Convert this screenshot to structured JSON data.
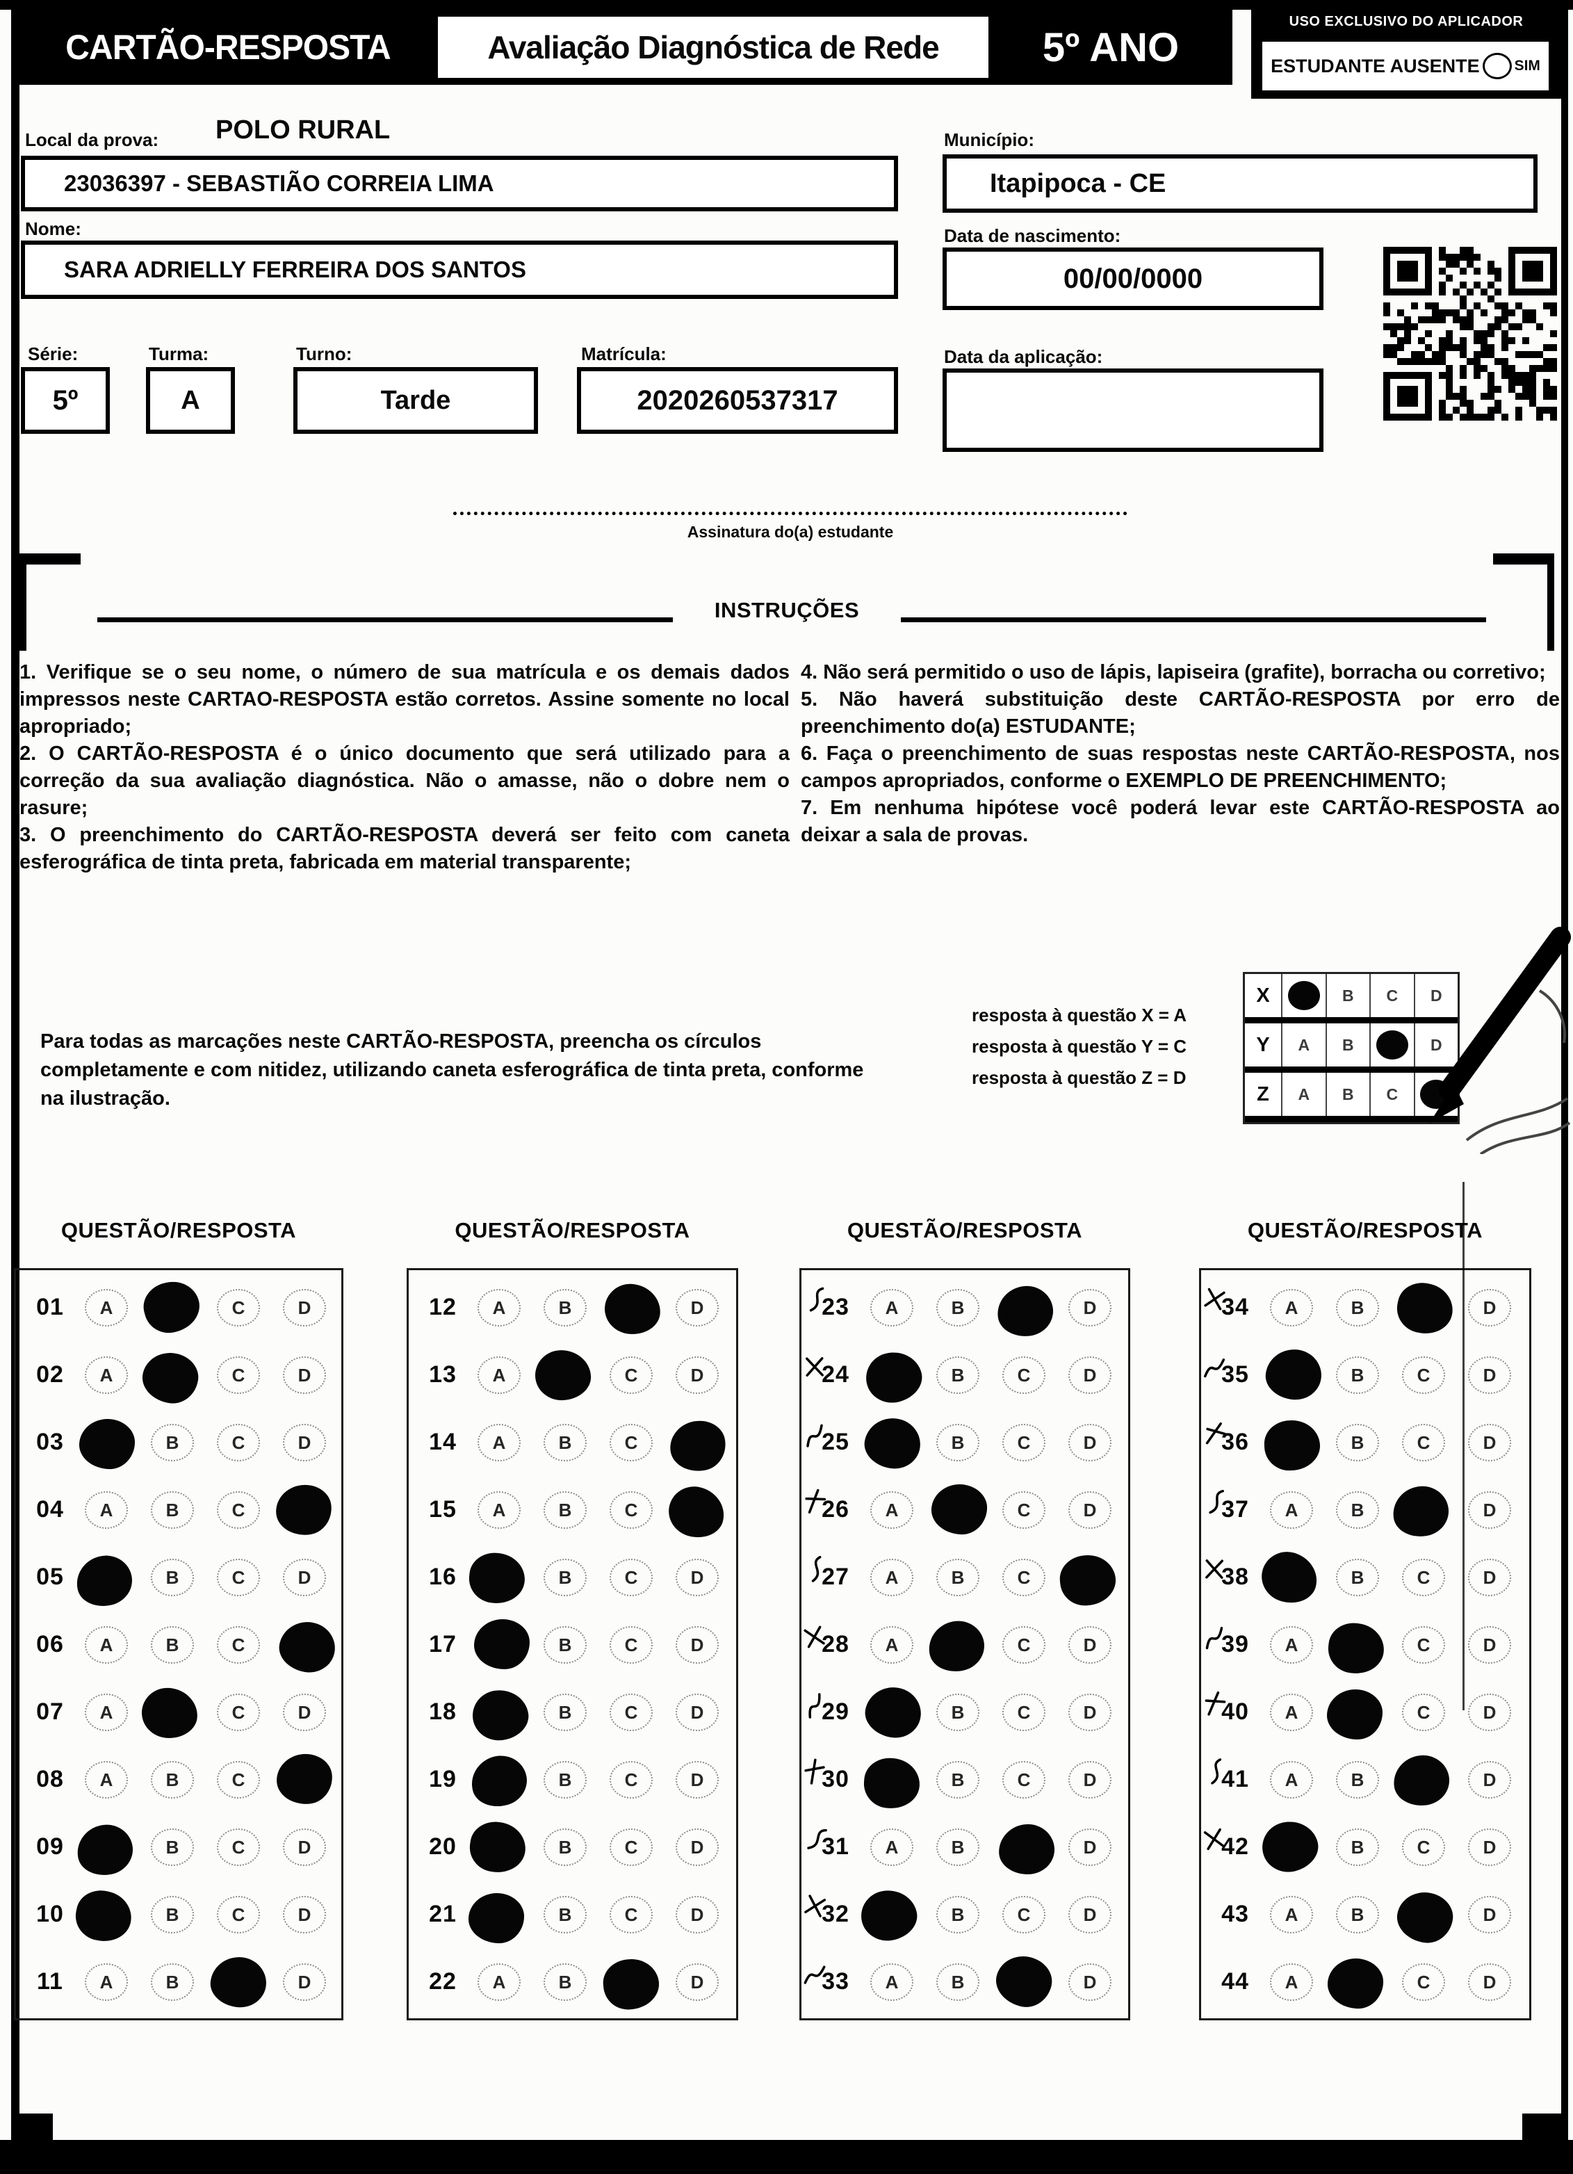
{
  "header": {
    "title": "CARTÃO-RESPOSTA",
    "subtitle": "Avaliação Diagnóstica de Rede",
    "grade": "5º ANO",
    "aplicador_label": "USO EXCLUSIVO DO APLICADOR",
    "absent_label": "ESTUDANTE AUSENTE",
    "absent_option": "SIM"
  },
  "fields": {
    "local_label": "Local da prova:",
    "local_value": "POLO RURAL",
    "school_value": "23036397 - SEBASTIÃO CORREIA LIMA",
    "municipio_label": "Município:",
    "municipio_value": "Itapipoca - CE",
    "nome_label": "Nome:",
    "nome_value": "SARA ADRIELLY FERREIRA DOS SANTOS",
    "nascimento_label": "Data de nascimento:",
    "nascimento_value": "00/00/0000",
    "serie_label": "Série:",
    "serie_value": "5º",
    "turma_label": "Turma:",
    "turma_value": "A",
    "turno_label": "Turno:",
    "turno_value": "Tarde",
    "matricula_label": "Matrícula:",
    "matricula_value": "2020260537317",
    "aplicacao_label": "Data da aplicação:",
    "aplicacao_value": ""
  },
  "signature_label": "Assinatura do(a) estudante",
  "instructions": {
    "title": "INSTRUÇÕES",
    "left": [
      "1. Verifique se o seu nome, o número de sua matrícula e os demais dados impressos neste CARTAO-RESPOSTA estão corretos. Assine somente no local apropriado;",
      "2. O CARTÃO-RESPOSTA é o único documento que será utilizado para a correção da sua avaliação diagnóstica. Não o amasse, não o dobre nem o rasure;",
      "3. O preenchimento do CARTÃO-RESPOSTA deverá ser feito com caneta esferográfica de tinta preta, fabricada em material transparente;"
    ],
    "right": [
      "4. Não será permitido o uso de lápis, lapiseira (grafite), borracha ou corretivo;",
      "5. Não haverá substituição deste CARTÃO-RESPOSTA por erro de preenchimento do(a) ESTUDANTE;",
      "6. Faça o preenchimento de suas respostas neste CARTÃO-RESPOSTA, nos campos apropriados, conforme o EXEMPLO DE PREENCHIMENTO;",
      "7. Em nenhuma hipótese você poderá levar este CARTÃO-RESPOSTA ao deixar a sala de provas."
    ]
  },
  "example": {
    "text": "Para todas as marcações neste CARTÃO-RESPOSTA, preencha os círculos completamente e com nitidez, utilizando caneta esferográfica de tinta preta, conforme na ilustração.",
    "legend": [
      "resposta à questão X = A",
      "resposta à questão Y = C",
      "resposta à questão Z = D"
    ],
    "options": [
      "A",
      "B",
      "C",
      "D"
    ],
    "rows": [
      {
        "label": "X",
        "marked": "A"
      },
      {
        "label": "Y",
        "marked": "C"
      },
      {
        "label": "Z",
        "marked": "D"
      }
    ]
  },
  "answer_section": {
    "column_header": "QUESTÃO/RESPOSTA",
    "options": [
      "A",
      "B",
      "C",
      "D"
    ],
    "columns": [
      {
        "questions": [
          {
            "n": "01",
            "marked": "B"
          },
          {
            "n": "02",
            "marked": "B"
          },
          {
            "n": "03",
            "marked": "A"
          },
          {
            "n": "04",
            "marked": "D"
          },
          {
            "n": "05",
            "marked": "A"
          },
          {
            "n": "06",
            "marked": "D"
          },
          {
            "n": "07",
            "marked": "B"
          },
          {
            "n": "08",
            "marked": "D"
          },
          {
            "n": "09",
            "marked": "A"
          },
          {
            "n": "10",
            "marked": "A"
          },
          {
            "n": "11",
            "marked": "C"
          }
        ]
      },
      {
        "questions": [
          {
            "n": "12",
            "marked": "C"
          },
          {
            "n": "13",
            "marked": "B"
          },
          {
            "n": "14",
            "marked": "D"
          },
          {
            "n": "15",
            "marked": "D"
          },
          {
            "n": "16",
            "marked": "A"
          },
          {
            "n": "17",
            "marked": "A"
          },
          {
            "n": "18",
            "marked": "A"
          },
          {
            "n": "19",
            "marked": "A"
          },
          {
            "n": "20",
            "marked": "A"
          },
          {
            "n": "21",
            "marked": "A"
          },
          {
            "n": "22",
            "marked": "C"
          }
        ]
      },
      {
        "questions": [
          {
            "n": "23",
            "marked": "C",
            "mark": true
          },
          {
            "n": "24",
            "marked": "A",
            "mark": true
          },
          {
            "n": "25",
            "marked": "A",
            "mark": true
          },
          {
            "n": "26",
            "marked": "B",
            "mark": true
          },
          {
            "n": "27",
            "marked": "D",
            "mark": true
          },
          {
            "n": "28",
            "marked": "B",
            "mark": true
          },
          {
            "n": "29",
            "marked": "A",
            "mark": true
          },
          {
            "n": "30",
            "marked": "A",
            "mark": true
          },
          {
            "n": "31",
            "marked": "C",
            "mark": true
          },
          {
            "n": "32",
            "marked": "A",
            "mark": true
          },
          {
            "n": "33",
            "marked": "C",
            "mark": true
          }
        ]
      },
      {
        "questions": [
          {
            "n": "34",
            "marked": "C",
            "mark": true
          },
          {
            "n": "35",
            "marked": "A",
            "mark": true
          },
          {
            "n": "36",
            "marked": "A",
            "mark": true
          },
          {
            "n": "37",
            "marked": "C",
            "mark": true
          },
          {
            "n": "38",
            "marked": "A",
            "mark": true
          },
          {
            "n": "39",
            "marked": "B",
            "mark": true
          },
          {
            "n": "40",
            "marked": "B",
            "mark": true
          },
          {
            "n": "41",
            "marked": "C",
            "mark": true
          },
          {
            "n": "42",
            "marked": "A",
            "mark": true
          },
          {
            "n": "43",
            "marked": "C"
          },
          {
            "n": "44",
            "marked": "B"
          }
        ]
      }
    ]
  },
  "colors": {
    "ink": "#000000",
    "paper": "#fcfcfa"
  }
}
